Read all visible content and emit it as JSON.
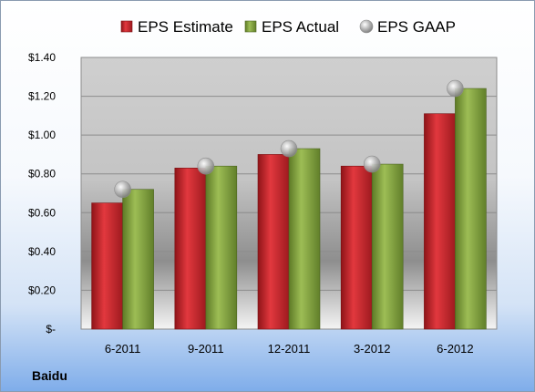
{
  "chart_data": {
    "type": "bar",
    "categories": [
      "6-2011",
      "9-2011",
      "12-2011",
      "3-2012",
      "6-2012"
    ],
    "series": [
      {
        "name": "EPS Estimate",
        "kind": "bar",
        "color": "#c0262c",
        "values": [
          0.65,
          0.83,
          0.9,
          0.84,
          1.11
        ]
      },
      {
        "name": "EPS Actual",
        "kind": "bar",
        "color": "#7f9e3a",
        "values": [
          0.72,
          0.84,
          0.93,
          0.85,
          1.24
        ]
      },
      {
        "name": "EPS GAAP",
        "kind": "marker",
        "color": "#a6a6a6",
        "values": [
          0.72,
          0.84,
          0.93,
          0.85,
          1.24
        ]
      }
    ],
    "yticks": [
      {
        "value": 0,
        "label": "$-"
      },
      {
        "value": 0.2,
        "label": "$0.20"
      },
      {
        "value": 0.4,
        "label": "$0.40"
      },
      {
        "value": 0.6,
        "label": "$0.60"
      },
      {
        "value": 0.8,
        "label": "$0.80"
      },
      {
        "value": 1.0,
        "label": "$1.00"
      },
      {
        "value": 1.2,
        "label": "$1.20"
      },
      {
        "value": 1.4,
        "label": "$1.40"
      }
    ],
    "ylim": [
      0,
      1.4
    ],
    "grid": true,
    "legend_position": "top",
    "company": "Baidu"
  }
}
